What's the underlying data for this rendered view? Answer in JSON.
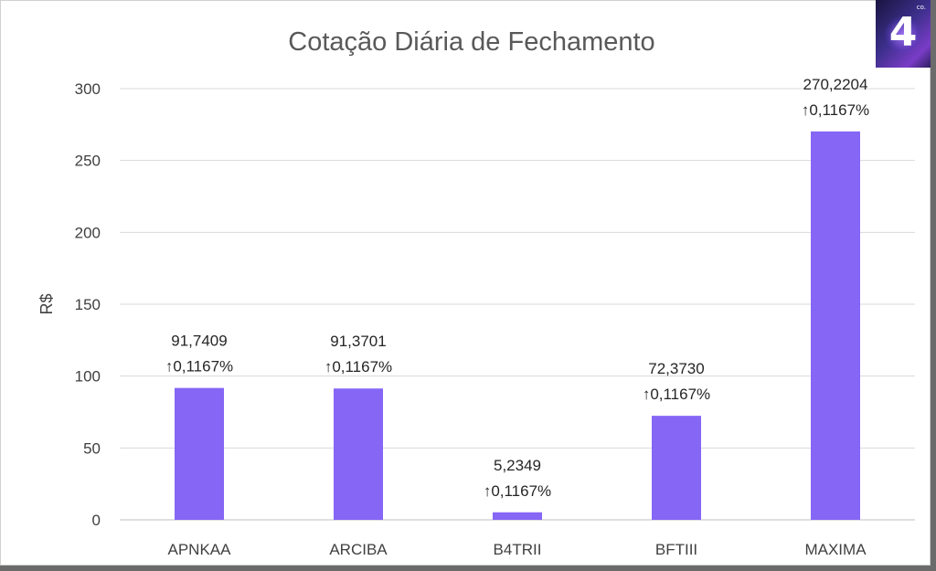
{
  "chart_data": {
    "type": "bar",
    "title": "Cotação Diária de Fechamento",
    "ylabel": "R$",
    "xlabel": "",
    "ylim": [
      0,
      300
    ],
    "yticks": [
      0,
      50,
      100,
      150,
      200,
      250,
      300
    ],
    "grid": true,
    "categories": [
      "APNKAA",
      "ARCIBA",
      "B4TRII",
      "BFTIII",
      "MAXIMA"
    ],
    "values": [
      91.7409,
      91.3701,
      5.2349,
      72.373,
      270.2204
    ],
    "labels": [
      {
        "value": "91,7409",
        "change": "↑0,1167%"
      },
      {
        "value": "91,3701",
        "change": "↑0,1167%"
      },
      {
        "value": "5,2349",
        "change": "↑0,1167%"
      },
      {
        "value": "72,3730",
        "change": "↑0,1167%"
      },
      {
        "value": "270,2204",
        "change": "↑0,1167%"
      }
    ],
    "bar_color": "#8566f5"
  },
  "logo": {
    "text": "4",
    "sub": "co."
  }
}
